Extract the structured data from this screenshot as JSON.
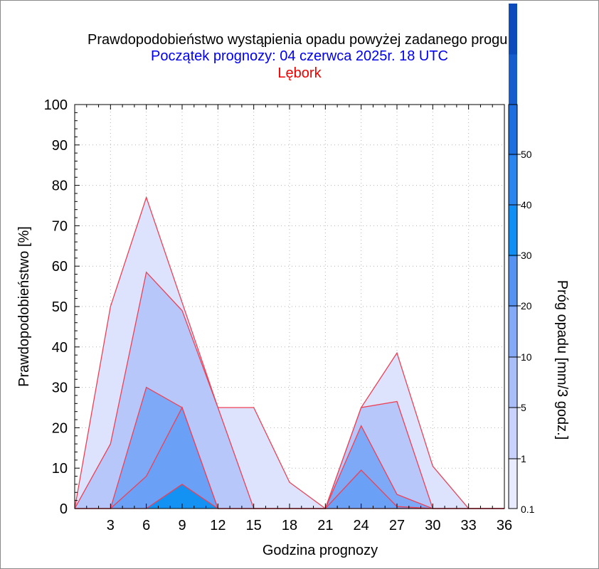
{
  "chart_data": {
    "type": "area",
    "title": "Prawdopodobieństwo wystąpienia opadu powyżej zadanego progu.",
    "subtitle": "Początek prognozy: 04 czerwca 2025r. 18 UTC",
    "location": "Lębork",
    "xlabel": "Godzina prognozy",
    "ylabel": "Prawdopodobieństwo [%]",
    "colorbar_label": "Próg opadu [mm/3 godz.]",
    "xlim": [
      0,
      36
    ],
    "ylim": [
      0,
      100
    ],
    "x_ticks": [
      3,
      6,
      9,
      12,
      15,
      18,
      21,
      24,
      27,
      30,
      33,
      36
    ],
    "y_ticks": [
      0,
      10,
      20,
      30,
      40,
      50,
      60,
      70,
      80,
      90,
      100
    ],
    "grid": true,
    "x": [
      0,
      3,
      6,
      9,
      12,
      15,
      18,
      21,
      24,
      27,
      30,
      33,
      36
    ],
    "series": [
      {
        "threshold": "0.1",
        "color": "#dde3fc",
        "values": [
          0,
          50,
          77,
          51,
          25,
          25,
          6.5,
          0,
          25,
          38.5,
          10.5,
          0,
          0
        ]
      },
      {
        "threshold": "1",
        "color": "#b7c7fa",
        "values": [
          0,
          16,
          58.5,
          49,
          25,
          0,
          0,
          0,
          25,
          26.5,
          0,
          0,
          0
        ]
      },
      {
        "threshold": "5",
        "color": "#7da9f7",
        "values": [
          0,
          0,
          30,
          25,
          0,
          0,
          0,
          0,
          20.5,
          3.5,
          0,
          0,
          0
        ]
      },
      {
        "threshold": "10",
        "color": "#6aa1f6",
        "values": [
          0,
          0,
          8,
          25,
          0,
          0,
          0,
          0,
          9.5,
          0.5,
          0,
          0,
          0
        ]
      },
      {
        "threshold": "20",
        "color": "#1492f4",
        "values": [
          0,
          0,
          0,
          6,
          0,
          0,
          0,
          0,
          0,
          0,
          0,
          0,
          0
        ]
      }
    ],
    "colorbar": {
      "labels": [
        "0.1",
        "1",
        "5",
        "10",
        "20",
        "30",
        "40",
        "50"
      ],
      "colors": [
        "#e8eafe",
        "#c9d2fb",
        "#a9bef9",
        "#84aaf7",
        "#5592f2",
        "#0f8ff4",
        "#2a86ee",
        "#1d6fe0",
        "#155ccd",
        "#0c4bbb"
      ]
    },
    "line_color": "#ee4055"
  }
}
